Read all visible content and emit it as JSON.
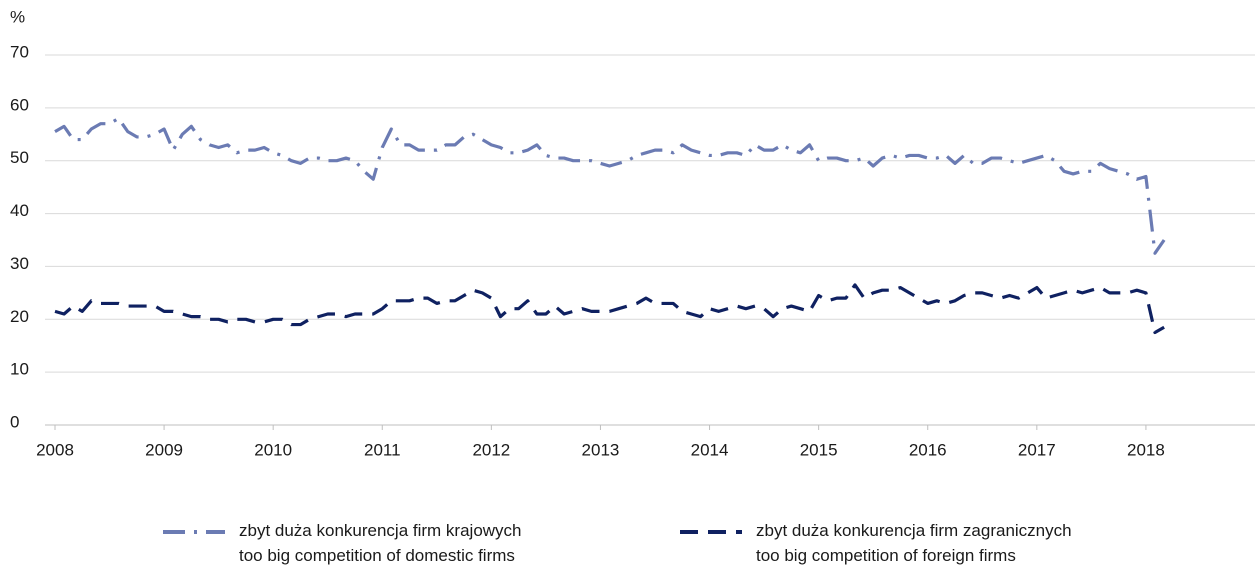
{
  "chart_data": {
    "type": "line",
    "y_label": "%",
    "xlim": [
      2008,
      2019
    ],
    "xticks": [
      2008,
      2009,
      2010,
      2011,
      2012,
      2013,
      2014,
      2015,
      2016,
      2017,
      2018
    ],
    "ylim": [
      0,
      70
    ],
    "yticks": [
      0,
      10,
      20,
      30,
      40,
      50,
      60,
      70
    ],
    "grid": true,
    "x": [
      2008,
      2008.083,
      2008.167,
      2008.25,
      2008.333,
      2008.417,
      2008.5,
      2008.583,
      2008.667,
      2008.75,
      2008.833,
      2008.917,
      2009,
      2009.083,
      2009.167,
      2009.25,
      2009.333,
      2009.417,
      2009.5,
      2009.583,
      2009.667,
      2009.75,
      2009.833,
      2009.917,
      2010,
      2010.083,
      2010.167,
      2010.25,
      2010.333,
      2010.417,
      2010.5,
      2010.583,
      2010.667,
      2010.75,
      2010.833,
      2010.917,
      2011,
      2011.083,
      2011.167,
      2011.25,
      2011.333,
      2011.417,
      2011.5,
      2011.583,
      2011.667,
      2011.75,
      2011.833,
      2011.917,
      2012,
      2012.083,
      2012.167,
      2012.25,
      2012.333,
      2012.417,
      2012.5,
      2012.583,
      2012.667,
      2012.75,
      2012.833,
      2012.917,
      2013,
      2013.083,
      2013.167,
      2013.25,
      2013.333,
      2013.417,
      2013.5,
      2013.583,
      2013.667,
      2013.75,
      2013.833,
      2013.917,
      2014,
      2014.083,
      2014.167,
      2014.25,
      2014.333,
      2014.417,
      2014.5,
      2014.583,
      2014.667,
      2014.75,
      2014.833,
      2014.917,
      2015,
      2015.083,
      2015.167,
      2015.25,
      2015.333,
      2015.417,
      2015.5,
      2015.583,
      2015.667,
      2015.75,
      2015.833,
      2015.917,
      2016,
      2016.083,
      2016.167,
      2016.25,
      2016.333,
      2016.417,
      2016.5,
      2016.583,
      2016.667,
      2016.75,
      2016.833,
      2016.917,
      2017,
      2017.083,
      2017.167,
      2017.25,
      2017.333,
      2017.417,
      2017.5,
      2017.583,
      2017.667,
      2017.75,
      2017.833,
      2017.917,
      2018,
      2018.083,
      2018.167
    ],
    "series": [
      {
        "name": "zbyt duża konkurencja firm krajowych\ntoo big competition of domestic firms",
        "color": "#6b7bb3",
        "dash": "dashdot",
        "values": [
          55.5,
          56.5,
          54,
          54,
          56,
          57,
          57,
          58,
          55.5,
          54.5,
          54.5,
          55,
          56,
          52,
          55,
          56.5,
          54,
          53,
          52.5,
          53,
          51.5,
          52,
          52,
          52.5,
          51.5,
          51,
          50,
          49.5,
          50.5,
          50.5,
          50,
          50,
          50.5,
          50,
          48,
          46.5,
          52.5,
          56,
          53,
          53,
          52,
          52,
          52,
          53,
          53,
          54.5,
          55,
          54,
          53,
          52.5,
          51.5,
          51.5,
          52,
          53,
          51,
          50.5,
          50.5,
          50,
          50,
          50,
          49.5,
          49,
          49.5,
          50,
          51,
          51.5,
          52,
          52,
          51.5,
          53,
          52,
          51.5,
          51,
          51,
          51.5,
          51.5,
          51,
          53,
          52,
          52,
          53,
          52,
          51.5,
          53,
          50,
          50.5,
          50.5,
          50,
          50,
          50.5,
          49,
          50.5,
          51,
          50.5,
          51,
          51,
          50.5,
          50.5,
          51,
          49.5,
          51,
          49.5,
          49.5,
          50.5,
          50.5,
          50,
          49.5,
          50,
          50.5,
          51,
          50,
          48,
          47.5,
          48,
          48,
          49.5,
          48.5,
          48,
          47.5,
          46.5,
          47,
          32.5,
          35
        ]
      },
      {
        "name": "zbyt duża konkurencja firm zagranicznych\ntoo big competition of foreign firms",
        "color": "#0f2161",
        "dash": "dashed",
        "values": [
          21.5,
          21,
          22.5,
          21.5,
          23.5,
          23,
          23,
          23,
          22.5,
          22.5,
          22.5,
          22.5,
          21.5,
          21.5,
          21,
          20.5,
          20.5,
          20,
          20,
          19.5,
          20,
          20,
          19.5,
          19.5,
          20,
          20,
          19,
          19,
          20,
          20.5,
          21,
          21,
          20.5,
          21,
          21,
          21,
          22,
          23.5,
          23.5,
          23.5,
          24,
          24,
          23,
          23.5,
          23.5,
          24.5,
          25.5,
          25,
          24,
          20.5,
          22,
          22,
          23.5,
          21,
          21,
          22.5,
          21,
          21.5,
          22,
          21.5,
          21.5,
          21.5,
          22,
          22.5,
          23,
          24,
          23,
          23,
          23,
          21.5,
          21,
          20.5,
          22,
          21.5,
          22,
          22.5,
          22,
          22.5,
          22,
          20.5,
          22,
          22.5,
          22,
          21.5,
          24.5,
          23.5,
          24,
          24,
          26.5,
          24,
          25,
          25.5,
          25.5,
          26,
          25,
          24,
          23,
          23.5,
          23,
          23.5,
          24.5,
          25,
          25,
          24.5,
          24,
          24.5,
          24,
          25,
          26,
          24,
          24.5,
          25,
          25.5,
          25,
          25.5,
          26,
          25,
          25,
          25,
          25.5,
          25,
          17.5,
          18.5
        ]
      }
    ]
  }
}
